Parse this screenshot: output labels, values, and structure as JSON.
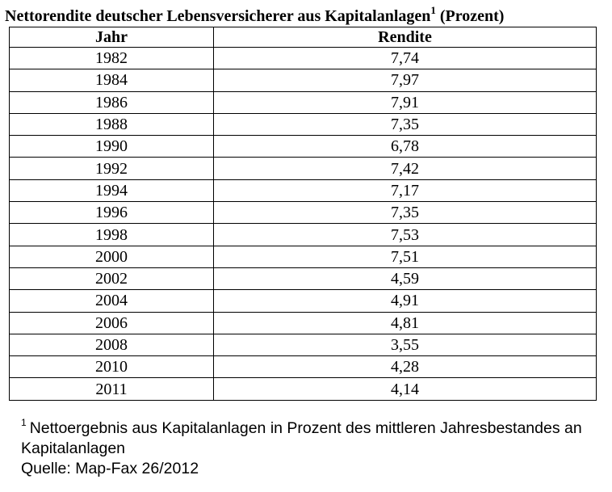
{
  "title": {
    "text": "Nettorendite deutscher Lebensversicherer aus Kapitalanlagen",
    "footnote_mark": "1",
    "unit": "(Prozent)"
  },
  "table": {
    "headers": [
      "Jahr",
      "Rendite"
    ],
    "rows": [
      [
        "1982",
        "7,74"
      ],
      [
        "1984",
        "7,97"
      ],
      [
        "1986",
        "7,91"
      ],
      [
        "1988",
        "7,35"
      ],
      [
        "1990",
        "6,78"
      ],
      [
        "1992",
        "7,42"
      ],
      [
        "1994",
        "7,17"
      ],
      [
        "1996",
        "7,35"
      ],
      [
        "1998",
        "7,53"
      ],
      [
        "2000",
        "7,51"
      ],
      [
        "2002",
        "4,59"
      ],
      [
        "2004",
        "4,91"
      ],
      [
        "2006",
        "4,81"
      ],
      [
        "2008",
        "3,55"
      ],
      [
        "2010",
        "4,28"
      ],
      [
        "2011",
        "4,14"
      ]
    ]
  },
  "footnote": {
    "mark": "1",
    "line1": "Nettoergebnis aus Kapitalanlagen in Prozent des mittleren Jahresbestandes an",
    "line2": "Kapitalanlagen",
    "source": "Quelle: Map-Fax 26/2012"
  }
}
